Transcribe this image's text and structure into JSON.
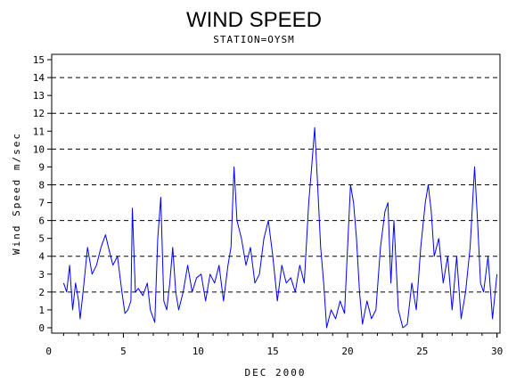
{
  "chart_data": {
    "type": "line",
    "title": "WIND SPEED",
    "subtitle": "STATION=OYSM",
    "xlabel": "DEC 2000",
    "ylabel": "Wind Speed m/sec",
    "xlim": [
      0.2,
      30.2
    ],
    "ylim": [
      -0.3,
      15.3
    ],
    "x_ticks": [
      0,
      5,
      10,
      15,
      20,
      25,
      30
    ],
    "y_ticks": [
      0,
      1,
      2,
      3,
      4,
      5,
      6,
      7,
      8,
      9,
      10,
      11,
      12,
      13,
      14,
      15
    ],
    "gridlines_y": [
      2,
      4,
      6,
      8,
      10,
      12,
      14
    ],
    "grid": "horizontal dashed",
    "series": [
      {
        "color": "#0000ff",
        "x": [
          1.0,
          1.2,
          1.4,
          1.6,
          1.8,
          2.0,
          2.1,
          2.3,
          2.6,
          2.9,
          3.2,
          3.5,
          3.8,
          4.0,
          4.3,
          4.6,
          4.9,
          5.1,
          5.3,
          5.5,
          5.6,
          5.8,
          6.0,
          6.3,
          6.6,
          6.8,
          7.1,
          7.3,
          7.5,
          7.7,
          7.9,
          8.1,
          8.3,
          8.5,
          8.7,
          9.0,
          9.3,
          9.6,
          9.9,
          10.2,
          10.5,
          10.8,
          11.1,
          11.4,
          11.7,
          12.0,
          12.2,
          12.4,
          12.6,
          12.9,
          13.2,
          13.5,
          13.8,
          14.1,
          14.4,
          14.7,
          15.0,
          15.3,
          15.6,
          15.9,
          16.2,
          16.5,
          16.8,
          17.1,
          17.4,
          17.6,
          17.8,
          18.0,
          18.2,
          18.4,
          18.6,
          18.9,
          19.2,
          19.5,
          19.8,
          20.0,
          20.2,
          20.4,
          20.6,
          20.8,
          21.0,
          21.3,
          21.6,
          21.9,
          22.2,
          22.5,
          22.7,
          22.9,
          23.1,
          23.4,
          23.7,
          24.0,
          24.3,
          24.6,
          24.9,
          25.2,
          25.4,
          25.6,
          25.8,
          26.1,
          26.4,
          26.7,
          27.0,
          27.3,
          27.6,
          27.9,
          28.2,
          28.5,
          28.7,
          28.9,
          29.1,
          29.4,
          29.7,
          30.0
        ],
        "y": [
          2.5,
          2.0,
          3.5,
          1.0,
          2.5,
          1.5,
          0.5,
          2.0,
          4.5,
          3.0,
          3.5,
          4.5,
          5.2,
          4.5,
          3.5,
          4.0,
          2.0,
          0.8,
          1.0,
          1.5,
          6.7,
          2.0,
          2.2,
          1.8,
          2.5,
          1.0,
          0.3,
          5.0,
          7.3,
          1.5,
          1.0,
          2.5,
          4.5,
          2.0,
          1.0,
          2.0,
          3.5,
          2.0,
          2.8,
          3.0,
          1.5,
          3.0,
          2.5,
          3.5,
          1.5,
          3.5,
          4.5,
          9.0,
          6.0,
          5.0,
          3.5,
          4.5,
          2.5,
          3.0,
          5.0,
          6.0,
          4.0,
          1.5,
          3.5,
          2.5,
          2.8,
          2.0,
          3.5,
          2.5,
          7.0,
          9.0,
          11.2,
          8.0,
          4.5,
          2.5,
          0.0,
          1.0,
          0.5,
          1.5,
          0.8,
          4.5,
          8.0,
          7.0,
          5.0,
          2.0,
          0.2,
          1.5,
          0.5,
          1.0,
          4.5,
          6.5,
          7.0,
          2.5,
          6.0,
          1.0,
          0.0,
          0.2,
          2.5,
          1.0,
          4.5,
          7.0,
          8.0,
          6.5,
          4.0,
          5.0,
          2.5,
          4.0,
          1.0,
          4.0,
          0.5,
          2.0,
          4.5,
          9.0,
          6.0,
          2.5,
          2.0,
          4.0,
          0.5,
          3.0
        ]
      }
    ]
  }
}
